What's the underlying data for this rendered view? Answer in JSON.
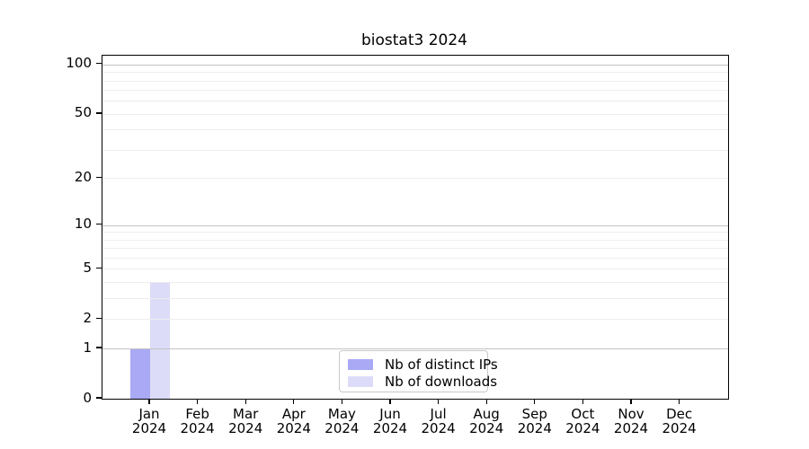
{
  "chart_data": {
    "type": "bar",
    "title": "biostat3 2024",
    "x_categories": [
      "Jan",
      "Feb",
      "Mar",
      "Apr",
      "May",
      "Jun",
      "Jul",
      "Aug",
      "Sep",
      "Oct",
      "Nov",
      "Dec"
    ],
    "x_year_label": "2024",
    "series": [
      {
        "name": "Nb of distinct IPs",
        "color": "#a9a9f5",
        "values": [
          1,
          0,
          0,
          0,
          0,
          0,
          0,
          0,
          0,
          0,
          0,
          0
        ]
      },
      {
        "name": "Nb of downloads",
        "color": "#dcdcf8",
        "values": [
          4,
          0,
          0,
          0,
          0,
          0,
          0,
          0,
          0,
          0,
          0,
          0
        ]
      }
    ],
    "y_scale": "log1p",
    "ylim": [
      0,
      113
    ],
    "y_tick_values": [
      0,
      1,
      2,
      5,
      10,
      20,
      50,
      100
    ],
    "y_major_gridlines": [
      1,
      10,
      100
    ],
    "y_minor_gridlines": [
      2,
      3,
      4,
      5,
      6,
      7,
      8,
      9,
      20,
      30,
      40,
      50,
      60,
      70,
      80,
      90
    ],
    "legend_position": "lower center",
    "grid": true,
    "colors": {
      "major_grid": "#c3c3c3",
      "minor_grid": "#ededed",
      "spine": "#000000",
      "text": "#000000",
      "background": "#ffffff"
    }
  }
}
